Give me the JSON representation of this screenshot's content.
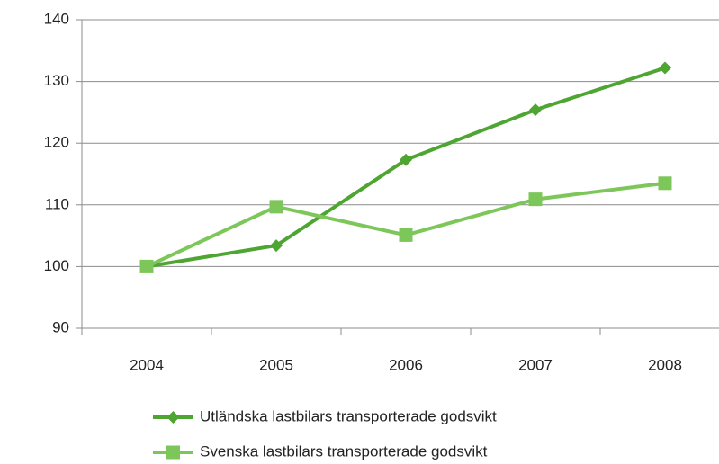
{
  "chart_data": {
    "type": "line",
    "categories": [
      "2004",
      "2005",
      "2006",
      "2007",
      "2008"
    ],
    "series": [
      {
        "name": "Utländska lastbilars transporterade godsvikt",
        "color": "#4ea532",
        "marker": "diamond",
        "values": [
          100,
          103.4,
          117.3,
          125.4,
          132.2
        ]
      },
      {
        "name": "Svenska lastbilars transporterade godsvikt",
        "color": "#7dc75a",
        "marker": "square",
        "values": [
          100,
          109.7,
          105.1,
          110.9,
          113.5
        ]
      }
    ],
    "ylim": [
      90,
      140
    ],
    "yticks": [
      90,
      100,
      110,
      120,
      130,
      140
    ],
    "grid": true,
    "legend": "bottom"
  }
}
